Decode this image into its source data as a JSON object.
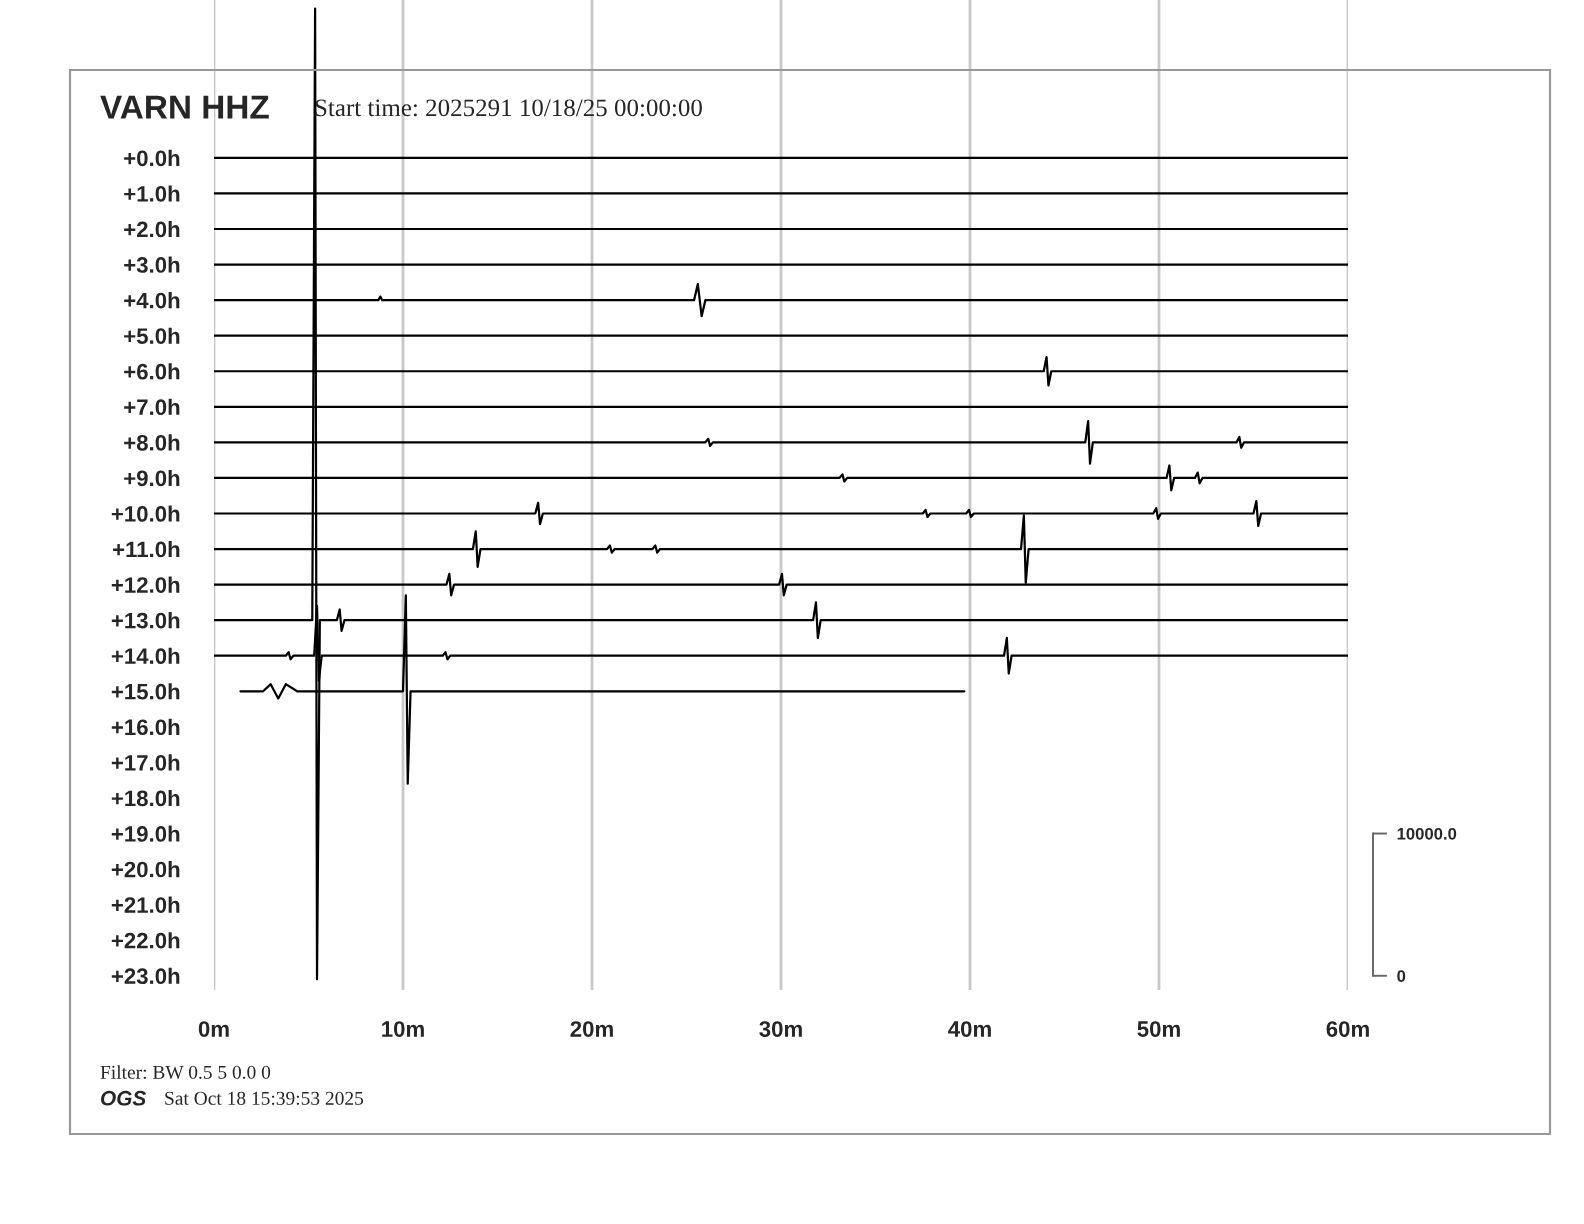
{
  "chart_data": {
    "type": "line",
    "title": "VARN HHZ",
    "subtitle": "Start time: 2025291 10/18/25 00:00:00",
    "annotations": [
      "Filter: BW 0.5 5 0.0 0",
      "OGS",
      "Sat Oct 18 15:39:53 2025"
    ],
    "xlim": [
      0,
      60
    ],
    "xticks": [
      {
        "value": 0,
        "label": "0m"
      },
      {
        "value": 10,
        "label": "10m"
      },
      {
        "value": 20,
        "label": "20m"
      },
      {
        "value": 30,
        "label": "30m"
      },
      {
        "value": 40,
        "label": "40m"
      },
      {
        "value": 50,
        "label": "50m"
      },
      {
        "value": 60,
        "label": "60m"
      }
    ],
    "ylim": [
      23.4,
      -4.44
    ],
    "yticks": [
      {
        "value": 0,
        "label": "+0.0h"
      },
      {
        "value": 1,
        "label": "+1.0h"
      },
      {
        "value": 2,
        "label": "+2.0h"
      },
      {
        "value": 3,
        "label": "+3.0h"
      },
      {
        "value": 4,
        "label": "+4.0h"
      },
      {
        "value": 5,
        "label": "+5.0h"
      },
      {
        "value": 6,
        "label": "+6.0h"
      },
      {
        "value": 7,
        "label": "+7.0h"
      },
      {
        "value": 8,
        "label": "+8.0h"
      },
      {
        "value": 9,
        "label": "+9.0h"
      },
      {
        "value": 10,
        "label": "+10.0h"
      },
      {
        "value": 11,
        "label": "+11.0h"
      },
      {
        "value": 12,
        "label": "+12.0h"
      },
      {
        "value": 13,
        "label": "+13.0h"
      },
      {
        "value": 14,
        "label": "+14.0h"
      },
      {
        "value": 15,
        "label": "+15.0h"
      },
      {
        "value": 16,
        "label": "+16.0h"
      },
      {
        "value": 17,
        "label": "+17.0h"
      },
      {
        "value": 18,
        "label": "+18.0h"
      },
      {
        "value": 19,
        "label": "+19.0h"
      },
      {
        "value": 20,
        "label": "+20.0h"
      },
      {
        "value": 21,
        "label": "+21.0h"
      },
      {
        "value": 22,
        "label": "+22.0h"
      },
      {
        "value": 23,
        "label": "+23.0h"
      }
    ],
    "y2lim": [
      -1000,
      68600
    ],
    "y2ticks": [
      0,
      {
        "value": 10000,
        "label": "10000.0"
      }
    ],
    "grid": "x",
    "series": [
      {
        "color": "#000000",
        "x": [
          0,
          60
        ],
        "values": [
          0,
          0
        ]
      },
      {
        "color": "#000000",
        "x": [
          0,
          60
        ],
        "values": [
          1,
          1
        ]
      },
      {
        "color": "#000000",
        "x": [
          0,
          60
        ],
        "values": [
          2,
          2
        ]
      },
      {
        "color": "#000000",
        "x": [
          0,
          60
        ],
        "values": [
          3,
          3
        ]
      },
      {
        "color": "#000000",
        "x": [
          0,
          8.7,
          8.8,
          8.9,
          25.4,
          25.6,
          25.8,
          26.0,
          60
        ],
        "values": [
          4,
          4,
          3.9,
          4,
          4,
          3.55,
          4.45,
          4,
          4
        ]
      },
      {
        "color": "#000000",
        "x": [
          0,
          60
        ],
        "values": [
          5,
          5
        ]
      },
      {
        "color": "#000000",
        "x": [
          0,
          43.9,
          44.05,
          44.15,
          44.3,
          60
        ],
        "values": [
          6,
          6,
          5.6,
          6.4,
          6,
          6
        ]
      },
      {
        "color": "#000000",
        "x": [
          0,
          60
        ],
        "values": [
          7,
          7
        ]
      },
      {
        "color": "#000000",
        "x": [
          0,
          26.0,
          26.15,
          26.25,
          26.4,
          46.1,
          46.25,
          46.35,
          46.5,
          54.1,
          54.25,
          54.35,
          54.5,
          60
        ],
        "values": [
          8,
          8,
          7.9,
          8.1,
          8,
          8,
          7.4,
          8.6,
          8,
          8,
          7.85,
          8.15,
          8,
          8
        ]
      },
      {
        "color": "#000000",
        "x": [
          0,
          33.1,
          33.25,
          33.35,
          33.5,
          50.4,
          50.55,
          50.65,
          50.8,
          51.9,
          52.05,
          52.15,
          52.3,
          60
        ],
        "values": [
          9,
          9,
          8.9,
          9.1,
          9,
          9,
          8.65,
          9.35,
          9,
          9,
          8.85,
          9.15,
          9,
          9
        ]
      },
      {
        "color": "#000000",
        "x": [
          0,
          17.0,
          17.15,
          17.25,
          17.4,
          37.5,
          37.65,
          37.75,
          37.9,
          39.8,
          39.95,
          40.05,
          40.2,
          49.7,
          49.85,
          49.95,
          50.1,
          55.0,
          55.15,
          55.25,
          55.4,
          60
        ],
        "values": [
          10,
          10,
          9.7,
          10.3,
          10,
          10,
          9.9,
          10.1,
          10,
          10,
          9.9,
          10.1,
          10,
          10,
          9.85,
          10.15,
          10,
          10,
          9.65,
          10.35,
          10,
          10
        ]
      },
      {
        "color": "#000000",
        "x": [
          0,
          13.7,
          13.85,
          13.95,
          14.1,
          20.8,
          20.95,
          21.05,
          21.2,
          23.2,
          23.35,
          23.45,
          23.6,
          42.7,
          42.85,
          42.95,
          43.1,
          60
        ],
        "values": [
          11,
          11,
          10.5,
          11.5,
          11,
          11,
          10.9,
          11.1,
          11,
          11,
          10.9,
          11.1,
          11,
          11,
          10.05,
          11.95,
          11,
          11
        ]
      },
      {
        "color": "#000000",
        "x": [
          0,
          12.3,
          12.45,
          12.55,
          12.7,
          29.9,
          30.05,
          30.15,
          30.3,
          60
        ],
        "values": [
          12,
          12,
          11.7,
          12.3,
          12,
          12,
          11.7,
          12.3,
          12,
          12
        ]
      },
      {
        "color": "#000000",
        "x": [
          0,
          5.2,
          5.35,
          5.45,
          5.6,
          6.5,
          6.65,
          6.75,
          6.9,
          31.7,
          31.85,
          31.95,
          32.1,
          60
        ],
        "values": [
          13,
          13,
          -4.2,
          23.1,
          13,
          13,
          12.7,
          13.3,
          13,
          13,
          12.5,
          13.5,
          13,
          13
        ]
      },
      {
        "color": "#000000",
        "x": [
          0,
          3.8,
          3.95,
          4.05,
          4.2,
          5.3,
          5.45,
          5.55,
          5.7,
          12.1,
          12.25,
          12.35,
          12.5,
          41.8,
          41.95,
          42.05,
          42.2,
          60
        ],
        "values": [
          14,
          14,
          13.9,
          14.1,
          14,
          14,
          12.6,
          14.7,
          14,
          14,
          13.9,
          14.1,
          14,
          14,
          13.5,
          14.5,
          14,
          14
        ]
      },
      {
        "color": "#000000",
        "x": [
          1.4,
          2.6,
          3.0,
          3.4,
          3.8,
          4.4,
          10.0,
          10.15,
          10.25,
          10.4,
          39.7
        ],
        "values": [
          15,
          15,
          14.8,
          15.2,
          14.8,
          15,
          15,
          12.3,
          17.6,
          15,
          15
        ]
      }
    ]
  }
}
